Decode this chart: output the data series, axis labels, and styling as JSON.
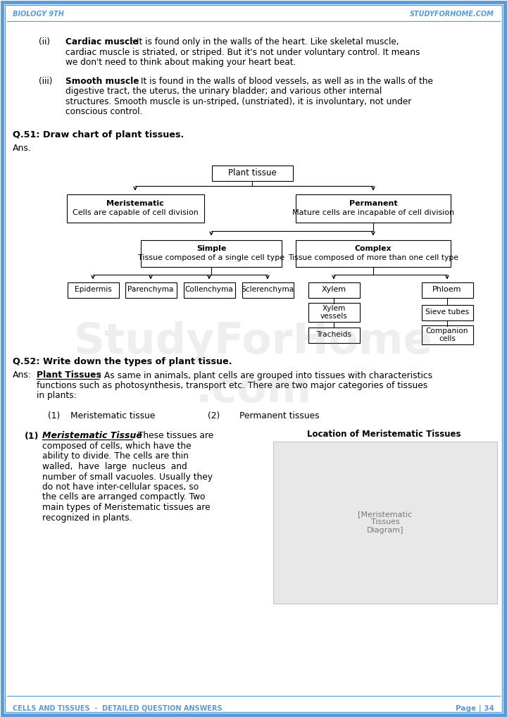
{
  "page_bg": "#ffffff",
  "border_color": "#5b9bd5",
  "header_color": "#5b9bd5",
  "header_left": "Biology 9th",
  "header_right": "StudyForHome.com",
  "footer_left": "Cells and Tissues  -  Detailed Question Answers",
  "footer_right": "Page | 34",
  "ii_label": "(ii)",
  "ii_title": "Cardiac muscle",
  "ii_lines": [
    ": It is found only in the walls of the heart. Like skeletal muscle,",
    "cardiac muscle is striated, or striped. But it's not under voluntary control. It means",
    "we don't need to think about making your heart beat."
  ],
  "iii_label": "(iii)",
  "iii_title": "Smooth muscle",
  "iii_lines": [
    ": It is found in the walls of blood vessels, as well as in the walls of the",
    "digestive tract, the uterus, the urinary bladder; and various other internal",
    "structures. Smooth muscle is un-striped, (unstriated), it is involuntary, not under",
    "conscious control."
  ],
  "q51_title": "Q.51: Draw chart of plant tissues.",
  "q51_ans": "Ans.",
  "chart_root": "Plant tissue",
  "chart_l1_left_bold": "Meristematic",
  "chart_l1_left_sub": "Cells are capable of cell division",
  "chart_l1_right_bold": "Permanent",
  "chart_l1_right_sub": "Mature cells are incapable of cell division",
  "chart_l2_left_bold": "Simple",
  "chart_l2_left_sub": "Tissue composed of a single cell type",
  "chart_l2_right_bold": "Complex",
  "chart_l2_right_sub": "Tissue composed of more than one cell type",
  "chart_simple": [
    "Epidermis",
    "Parenchyma",
    "Collenchyma",
    "Sclerenchyma"
  ],
  "chart_xylem": [
    "Xylem",
    "Xylem\nvessels",
    "Tracheids"
  ],
  "chart_phloem": [
    "Phloem",
    "Sieve tubes",
    "Companion\ncells"
  ],
  "q52_title": "Q.52: Write down the types of plant tissue.",
  "q52_ans_label": "Ans:",
  "q52_ans_bold": "Plant Tissues",
  "q52_ans_line1": ": As same in animals, plant cells are grouped into tissues with characteristics",
  "q52_ans_line2": "functions such as photosynthesis, transport etc. There are two major categories of tissues",
  "q52_ans_line3": "in plants:",
  "q52_item1_num": "(1)",
  "q52_item1_txt": "Meristematic tissue",
  "q52_item2_num": "(2)",
  "q52_item2_txt": "Permanent tissues",
  "q52_sub_num": "(1)",
  "q52_sub_title": "Meristematic Tissue",
  "q52_sub_colon": ": These tissues are",
  "q52_sub_body": [
    "composed of cells, which have the",
    "ability to divide. The cells are thin",
    "walled,  have  large  nucleus  and",
    "number of small vacuoles. Usually they",
    "do not have inter-cellular spaces, so",
    "the cells are arranged compactly. Two",
    "main types of Meristematic tissues are",
    "recognized in plants."
  ],
  "img_title": "Location of Meristematic Tissues",
  "watermark": "StudyForHome\n.com"
}
